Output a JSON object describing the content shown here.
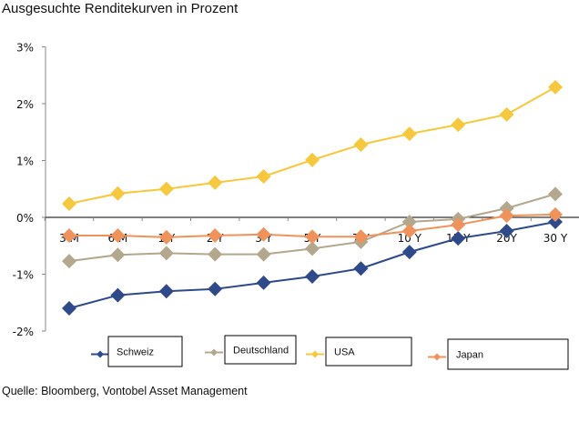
{
  "chart_data": {
    "type": "line",
    "title": "Ausgesuchte Renditekurven in Prozent",
    "xlabel": "",
    "ylabel": "",
    "categories": [
      "3 M",
      "6 M",
      "1 Y",
      "2 Y",
      "3 Y",
      "5 Y",
      "7 Y",
      "10 Y",
      "15 Y",
      "20Y",
      "30 Y"
    ],
    "ylim": [
      -2,
      3
    ],
    "yticks": [
      3,
      2,
      1,
      0,
      -1,
      -2
    ],
    "ytick_labels": [
      "3%",
      "2%",
      "1%",
      "0%",
      "-1%",
      "-2%"
    ],
    "grid": false,
    "legend_position": "bottom",
    "series": [
      {
        "name": "Schweiz",
        "color": "#2E4A8B",
        "values": [
          -1.6,
          -1.37,
          -1.3,
          -1.26,
          -1.15,
          -1.04,
          -0.9,
          -0.61,
          -0.37,
          -0.24,
          -0.08
        ]
      },
      {
        "name": "Deutschland",
        "color": "#B3A88D",
        "values": [
          -0.77,
          -0.66,
          -0.63,
          -0.65,
          -0.65,
          -0.55,
          -0.43,
          -0.08,
          -0.03,
          0.16,
          0.41
        ]
      },
      {
        "name": "USA",
        "color": "#F8C83C",
        "values": [
          0.24,
          0.42,
          0.5,
          0.61,
          0.72,
          1.01,
          1.28,
          1.47,
          1.63,
          1.81,
          2.29
        ]
      },
      {
        "name": "Japan",
        "color": "#F0925A",
        "values": [
          -0.32,
          -0.32,
          -0.35,
          -0.32,
          -0.3,
          -0.34,
          -0.34,
          -0.24,
          -0.13,
          0.03,
          0.05
        ]
      }
    ]
  },
  "source": "Quelle: Bloomberg, Vontobel Asset Management"
}
